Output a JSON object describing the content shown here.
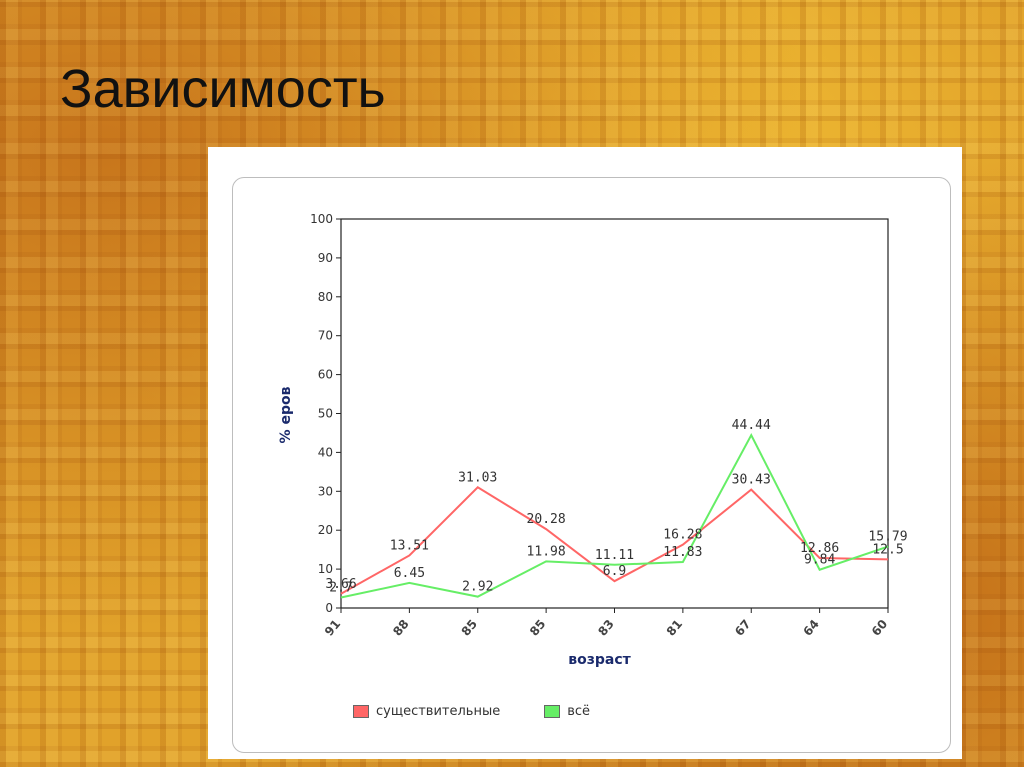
{
  "slide": {
    "title": "Зависимость"
  },
  "chart_data": {
    "type": "line",
    "categories": [
      "91",
      "88",
      "85",
      "85",
      "83",
      "81",
      "67",
      "64",
      "60"
    ],
    "series": [
      {
        "name": "существительные",
        "color": "#ff6666",
        "values": [
          3.66,
          13.51,
          31.03,
          20.28,
          6.9,
          16.28,
          30.43,
          12.86,
          12.5
        ],
        "labels": [
          "3.66",
          "13.51",
          "31.03",
          "20.28",
          "6.9",
          "16.28",
          "30.43",
          "12.86",
          "12.5"
        ]
      },
      {
        "name": "всё",
        "color": "#66ee66",
        "values": [
          2.7,
          6.45,
          2.92,
          11.98,
          11.11,
          11.83,
          44.44,
          9.84,
          15.79
        ],
        "labels": [
          "2.7",
          "6.45",
          "2.92",
          "11.98",
          "11.11",
          "11.83",
          "44.44",
          "9.84",
          "15.79"
        ]
      }
    ],
    "xlabel": "возраст",
    "ylabel": "% еров",
    "ylim": [
      0,
      100
    ],
    "yticks": [
      "0",
      "10",
      "20",
      "30",
      "40",
      "50",
      "60",
      "70",
      "80",
      "90",
      "100"
    ],
    "grid": false,
    "legend_position": "bottom"
  }
}
